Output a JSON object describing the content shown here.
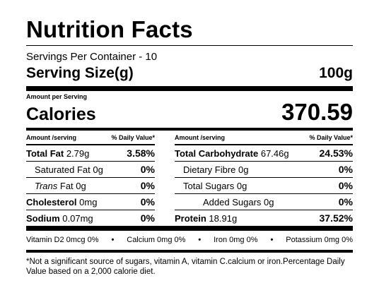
{
  "title": "Nutrition Facts",
  "servings": "Servings Per Container - 10",
  "serving_size": {
    "label": "Serving Size(g)",
    "value": "100g"
  },
  "amount_per_serving": "Amount per Serving",
  "calories": {
    "label": "Calories",
    "value": "370.59"
  },
  "left_header": {
    "amount": "Amount /serving",
    "dv": "% Daily Value*"
  },
  "right_header": {
    "amount": "Amount /serving",
    "dv": "% Daily Value*"
  },
  "left_rows": [
    {
      "name": "Total Fat",
      "amount": "2.79g",
      "dv": "3.58%"
    },
    {
      "name": "Saturated Fat",
      "amount": "0g",
      "dv": "0%"
    },
    {
      "name": "Trans",
      "name_rest": " Fat",
      "amount": "0g",
      "dv": "0%"
    },
    {
      "name": "Cholesterol",
      "amount": "0mg",
      "dv": "0%"
    },
    {
      "name": "Sodium",
      "amount": "0.07mg",
      "dv": "0%"
    }
  ],
  "right_rows": [
    {
      "name": "Total Carbohydrate",
      "amount": "67.46g",
      "dv": "24.53%"
    },
    {
      "name": "Dietary Fibre",
      "amount": "0g",
      "dv": "0%"
    },
    {
      "name": "Total Sugars",
      "amount": "0g",
      "dv": "0%"
    },
    {
      "name": "Added Sugars",
      "amount": "0g",
      "dv": "0%"
    },
    {
      "name": "Protein",
      "amount": "18.91g",
      "dv": "37.52%"
    }
  ],
  "vitamins": {
    "d2": "Vitamin D2 0mcg 0%",
    "calcium": "Calcium 0mg 0%",
    "iron": "Iron 0mg 0%",
    "potassium": "Potassium 0mg 0%",
    "separator": "•"
  },
  "footnote": "*Not a significant source of sugars, vitamin A,  vitamin C.calcium or iron.Percentage Daily Value based on a 2,000 calorie diet."
}
